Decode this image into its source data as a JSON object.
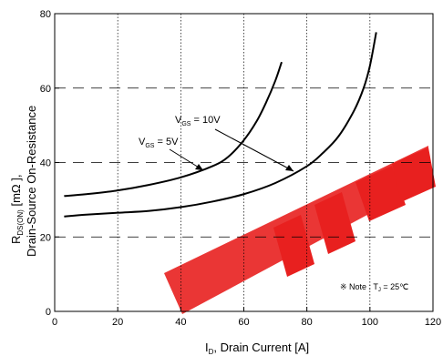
{
  "chart_data": {
    "type": "line",
    "xlabel": "I",
    "xlabel_sub": "D",
    "xlabel_rest": ", Drain Current [A]",
    "ylabel_line1_main": "R",
    "ylabel_line1_sub": "DS(ON)",
    "ylabel_line1_unit": " [mΩ ],",
    "ylabel_line2": "Drain-Source On-Resistance",
    "xlim": [
      0,
      120
    ],
    "ylim": [
      0,
      80
    ],
    "xticks": [
      0,
      20,
      40,
      60,
      80,
      100,
      120
    ],
    "yticks": [
      0,
      20,
      40,
      60,
      80
    ],
    "grid": true,
    "series": [
      {
        "name": "V_GS = 5V",
        "label_main": "V",
        "label_sub": "GS",
        "label_rest": " = 5V",
        "color": "#000000",
        "x": [
          3,
          10,
          20,
          30,
          40,
          50,
          55,
          60,
          64,
          67,
          70,
          72
        ],
        "y": [
          31,
          31.5,
          32.5,
          34,
          36,
          39,
          41.5,
          46,
          51,
          56,
          62,
          67
        ]
      },
      {
        "name": "V_GS = 10V",
        "label_main": "V",
        "label_sub": "GS",
        "label_rest": " = 10V",
        "color": "#000000",
        "x": [
          3,
          10,
          20,
          30,
          40,
          50,
          60,
          70,
          80,
          85,
          90,
          95,
          98,
          100,
          102
        ],
        "y": [
          25.5,
          26,
          26.5,
          27,
          28,
          29.5,
          31.5,
          34.5,
          39,
          42.5,
          47,
          54,
          60,
          66,
          75
        ]
      }
    ],
    "note": {
      "symbol": "※",
      "text_pre": " Note : T",
      "text_sub": "J",
      "text_post": " = 25℃"
    },
    "watermark": {
      "text": "EEPW",
      "color": "#e8201f"
    }
  }
}
